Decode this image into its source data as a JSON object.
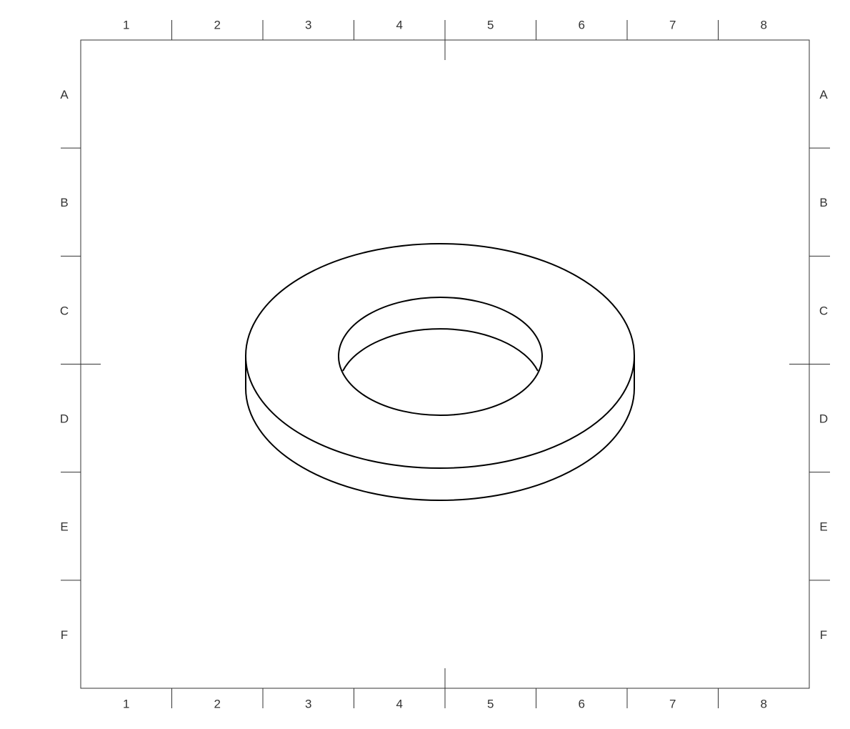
{
  "sheet": {
    "columns": [
      "1",
      "2",
      "3",
      "4",
      "5",
      "6",
      "7",
      "8"
    ],
    "rows": [
      "A",
      "B",
      "C",
      "D",
      "E",
      "F"
    ]
  },
  "drawing": {
    "object": "washer",
    "view": "isometric",
    "line_color": "#000000",
    "frame_color": "#333333"
  }
}
